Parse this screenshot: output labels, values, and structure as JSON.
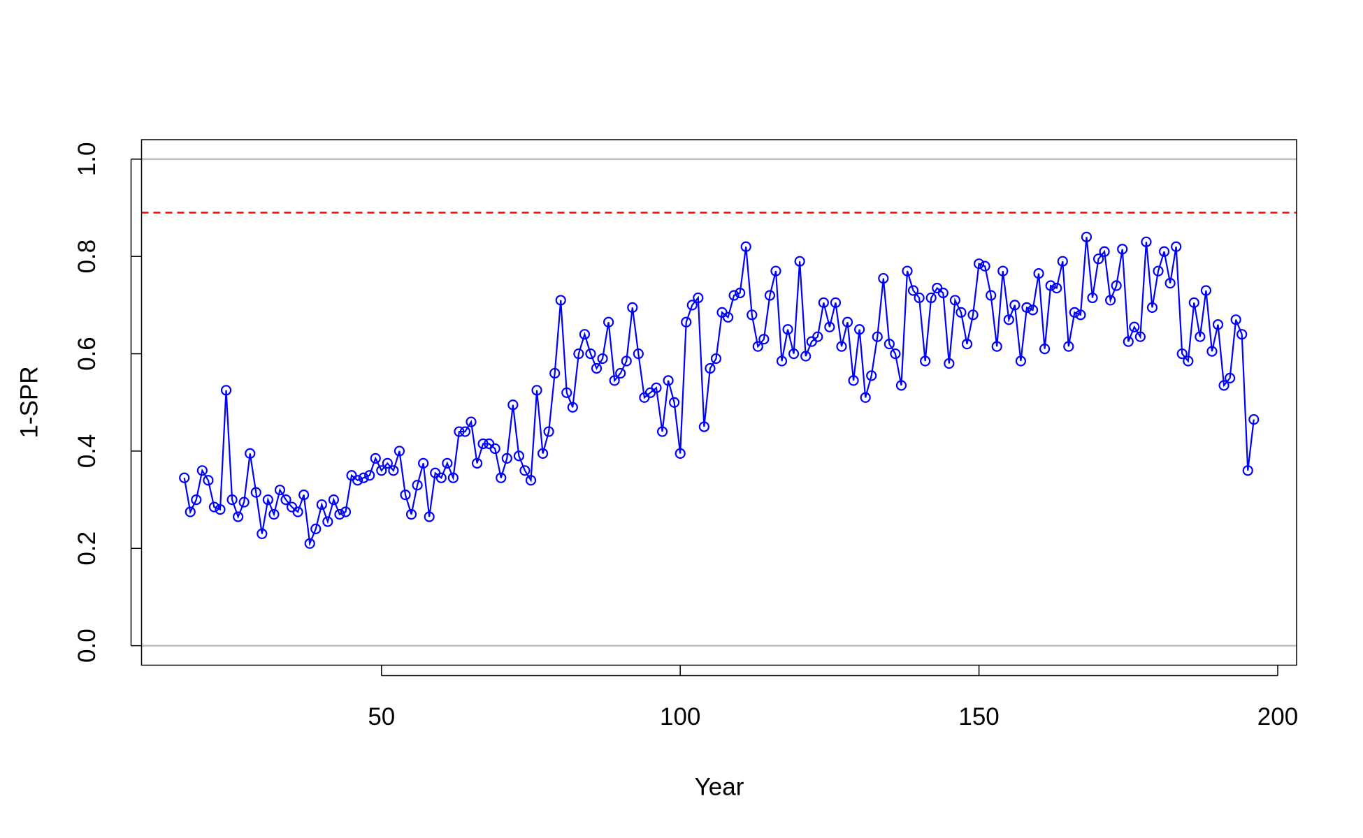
{
  "chart_data": {
    "type": "line",
    "xlabel": "Year",
    "ylabel": "1-SPR",
    "color": "#0000ff",
    "markers": true,
    "x": [
      17,
      18,
      19,
      20,
      21,
      22,
      23,
      24,
      25,
      26,
      27,
      28,
      29,
      30,
      31,
      32,
      33,
      34,
      35,
      36,
      37,
      38,
      39,
      40,
      41,
      42,
      43,
      44,
      45,
      46,
      47,
      48,
      49,
      50,
      51,
      52,
      53,
      54,
      55,
      56,
      57,
      58,
      59,
      60,
      61,
      62,
      63,
      64,
      65,
      66,
      67,
      68,
      69,
      70,
      71,
      72,
      73,
      74,
      75,
      76,
      77,
      78,
      79,
      80,
      81,
      82,
      83,
      84,
      85,
      86,
      87,
      88,
      89,
      90,
      91,
      92,
      93,
      94,
      95,
      96,
      97,
      98,
      99,
      100,
      101,
      102,
      103,
      104,
      105,
      106,
      107,
      108,
      109,
      110,
      111,
      112,
      113,
      114,
      115,
      116,
      117,
      118,
      119,
      120,
      121,
      122,
      123,
      124,
      125,
      126,
      127,
      128,
      129,
      130,
      131,
      132,
      133,
      134,
      135,
      136,
      137,
      138,
      139,
      140,
      141,
      142,
      143,
      144,
      145,
      146,
      147,
      148,
      149,
      150,
      151,
      152,
      153,
      154,
      155,
      156,
      157,
      158,
      159,
      160,
      161,
      162,
      163,
      164,
      165,
      166,
      167,
      168,
      169,
      170,
      171,
      172,
      173,
      174,
      175,
      176,
      177,
      178,
      179,
      180,
      181,
      182,
      183,
      184,
      185,
      186,
      187,
      188,
      189,
      190,
      191,
      192,
      193,
      194,
      195,
      196
    ],
    "values": [
      0.345,
      0.275,
      0.3,
      0.36,
      0.34,
      0.285,
      0.28,
      0.525,
      0.3,
      0.265,
      0.295,
      0.395,
      0.315,
      0.23,
      0.3,
      0.27,
      0.32,
      0.3,
      0.285,
      0.275,
      0.31,
      0.21,
      0.24,
      0.29,
      0.255,
      0.3,
      0.27,
      0.275,
      0.35,
      0.34,
      0.345,
      0.35,
      0.385,
      0.36,
      0.375,
      0.36,
      0.4,
      0.31,
      0.27,
      0.33,
      0.375,
      0.265,
      0.355,
      0.345,
      0.375,
      0.345,
      0.44,
      0.44,
      0.46,
      0.375,
      0.415,
      0.415,
      0.405,
      0.345,
      0.385,
      0.495,
      0.39,
      0.36,
      0.34,
      0.525,
      0.395,
      0.44,
      0.56,
      0.71,
      0.52,
      0.49,
      0.6,
      0.64,
      0.6,
      0.57,
      0.59,
      0.665,
      0.545,
      0.56,
      0.585,
      0.695,
      0.6,
      0.51,
      0.52,
      0.53,
      0.44,
      0.545,
      0.5,
      0.395,
      0.665,
      0.7,
      0.715,
      0.45,
      0.57,
      0.59,
      0.685,
      0.675,
      0.72,
      0.725,
      0.82,
      0.68,
      0.615,
      0.63,
      0.72,
      0.77,
      0.585,
      0.65,
      0.6,
      0.79,
      0.595,
      0.625,
      0.635,
      0.705,
      0.655,
      0.705,
      0.615,
      0.665,
      0.545,
      0.65,
      0.51,
      0.555,
      0.635,
      0.755,
      0.62,
      0.6,
      0.535,
      0.77,
      0.73,
      0.715,
      0.585,
      0.715,
      0.735,
      0.725,
      0.58,
      0.71,
      0.685,
      0.62,
      0.68,
      0.785,
      0.78,
      0.72,
      0.615,
      0.77,
      0.67,
      0.7,
      0.585,
      0.695,
      0.69,
      0.765,
      0.61,
      0.74,
      0.735,
      0.79,
      0.615,
      0.685,
      0.68,
      0.84,
      0.715,
      0.795,
      0.81,
      0.71,
      0.74,
      0.815,
      0.625,
      0.655,
      0.635,
      0.83,
      0.695,
      0.77,
      0.81,
      0.745,
      0.82,
      0.6,
      0.585,
      0.705,
      0.635,
      0.73,
      0.605,
      0.66,
      0.535,
      0.55,
      0.67,
      0.64,
      0.36,
      0.465
    ],
    "xlim": [
      9.84,
      203.16
    ],
    "ylim": [
      -0.04,
      1.04
    ],
    "xticks": [
      50,
      100,
      150,
      200
    ],
    "yticks": [
      {
        "value": 0,
        "label": "0.0"
      },
      {
        "value": 0.2,
        "label": "0.2"
      },
      {
        "value": 0.4,
        "label": "0.4"
      },
      {
        "value": 0.6,
        "label": "0.6"
      },
      {
        "value": 0.8,
        "label": "0.8"
      },
      {
        "value": 1,
        "label": "1.0"
      }
    ],
    "reference_lines": [
      {
        "value": 0,
        "color": "#bebebe",
        "dashed": false
      },
      {
        "value": 1,
        "color": "#bebebe",
        "dashed": false
      },
      {
        "value": 0.89,
        "color": "#ff0000",
        "dashed": true
      }
    ]
  }
}
